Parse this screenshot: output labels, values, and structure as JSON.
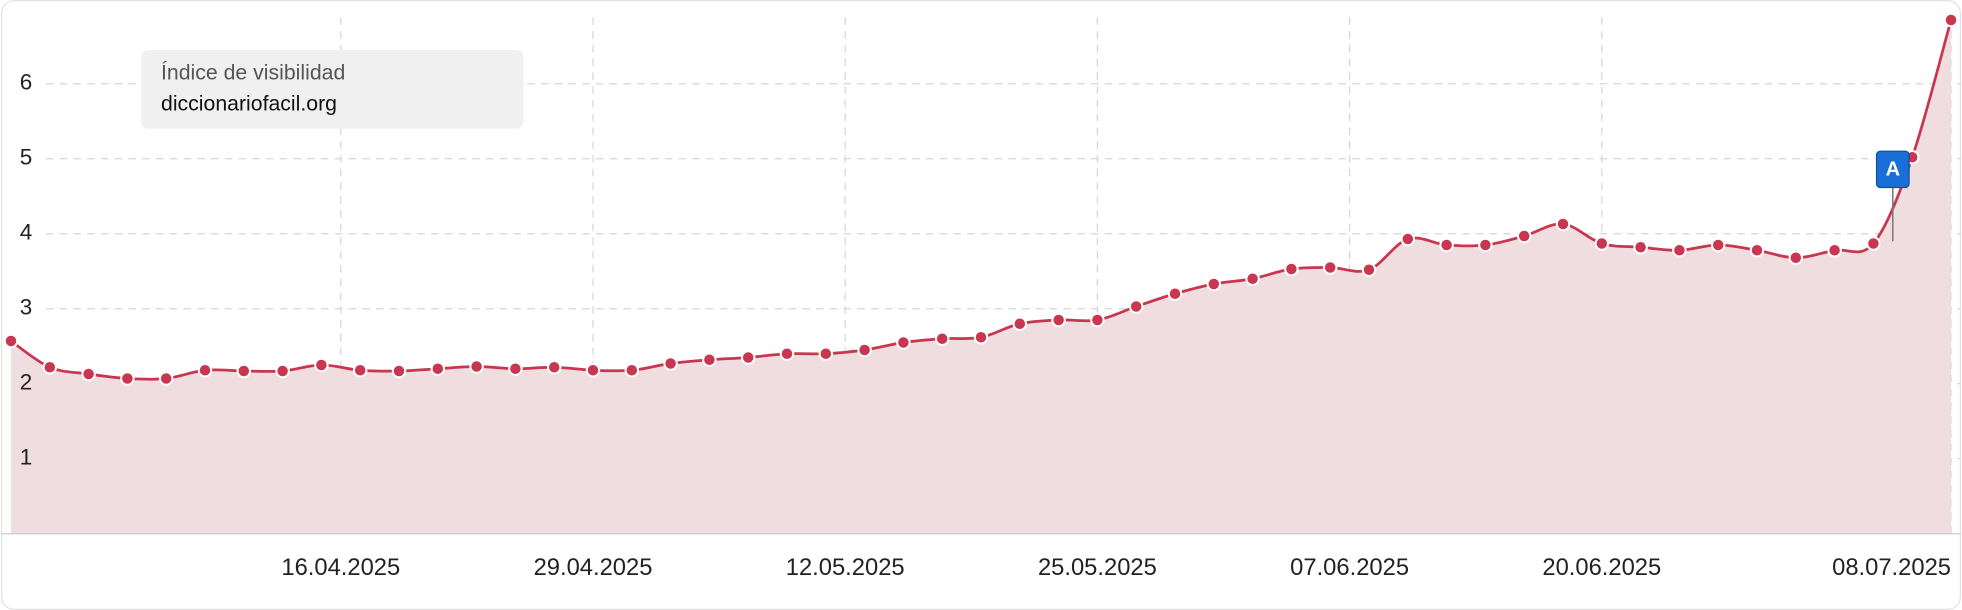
{
  "chart_data": {
    "type": "line",
    "title": "Índice de visibilidad",
    "x": [
      "30.03.2025",
      "01.04.2025",
      "03.04.2025",
      "05.04.2025",
      "07.04.2025",
      "09.04.2025",
      "11.04.2025",
      "13.04.2025",
      "15.04.2025",
      "17.04.2025",
      "19.04.2025",
      "21.04.2025",
      "23.04.2025",
      "25.04.2025",
      "27.04.2025",
      "29.04.2025",
      "01.05.2025",
      "03.05.2025",
      "05.05.2025",
      "07.05.2025",
      "09.05.2025",
      "11.05.2025",
      "13.05.2025",
      "15.05.2025",
      "17.05.2025",
      "19.05.2025",
      "21.05.2025",
      "23.05.2025",
      "25.05.2025",
      "27.05.2025",
      "29.05.2025",
      "31.05.2025",
      "02.06.2025",
      "04.06.2025",
      "06.06.2025",
      "08.06.2025",
      "10.06.2025",
      "12.06.2025",
      "14.06.2025",
      "16.06.2025",
      "18.06.2025",
      "20.06.2025",
      "22.06.2025",
      "24.06.2025",
      "26.06.2025",
      "28.06.2025",
      "30.06.2025",
      "02.07.2025",
      "04.07.2025",
      "06.07.2025",
      "08.07.2025"
    ],
    "series": [
      {
        "name": "diccionariofacil.org",
        "color": "#c8364f",
        "fill": "#f0dde0",
        "values": [
          2.57,
          2.22,
          2.13,
          2.07,
          2.07,
          2.18,
          2.17,
          2.17,
          2.25,
          2.18,
          2.17,
          2.2,
          2.23,
          2.2,
          2.22,
          2.18,
          2.18,
          2.27,
          2.32,
          2.35,
          2.4,
          2.4,
          2.45,
          2.55,
          2.6,
          2.62,
          2.8,
          2.85,
          2.85,
          3.03,
          3.2,
          3.33,
          3.4,
          3.53,
          3.55,
          3.52,
          3.93,
          3.85,
          3.85,
          3.97,
          4.13,
          3.87,
          3.82,
          3.78,
          3.85,
          3.78,
          3.68,
          3.78,
          3.87,
          5.02,
          6.85
        ]
      }
    ],
    "ylim": [
      0,
      7
    ],
    "yticks": [
      1,
      2,
      3,
      4,
      5,
      6
    ],
    "xticks": [
      "16.04.2025",
      "29.04.2025",
      "12.05.2025",
      "25.05.2025",
      "07.06.2025",
      "20.06.2025",
      "08.07.2025"
    ],
    "grid": true,
    "annotations": [
      {
        "x": "05.07.2025",
        "label": "A",
        "color": "#1a6fd6"
      }
    ]
  }
}
